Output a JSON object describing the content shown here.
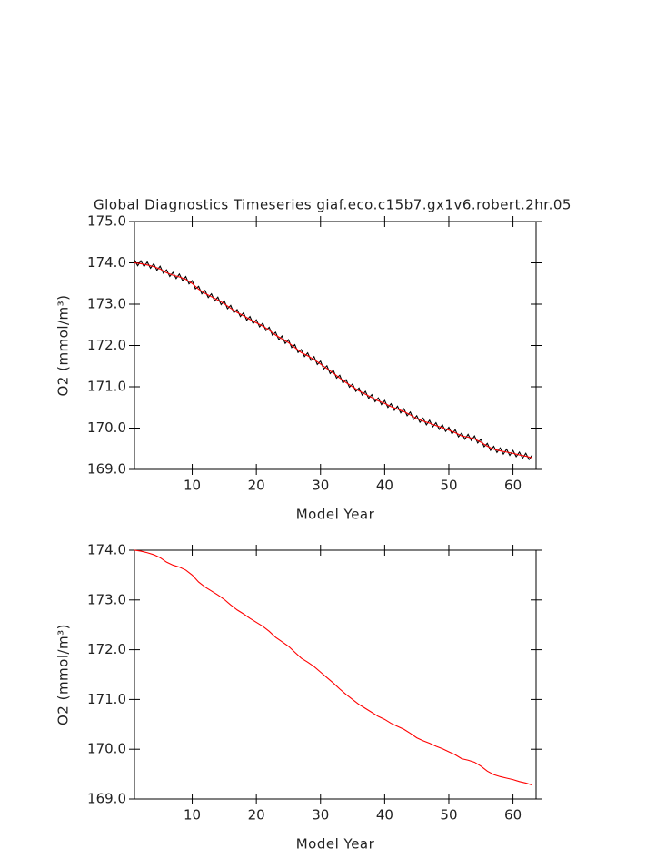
{
  "chart_data": [
    {
      "type": "line",
      "title": "Global Diagnostics Timeseries giaf.eco.c15b7.gx1v6.robert.2hr.05",
      "xlabel": "Model Year",
      "ylabel": "O2 (mmol/m³)",
      "xlim": [
        1,
        63.6
      ],
      "xticks": [
        10,
        20,
        30,
        40,
        50,
        60
      ],
      "ylim": [
        169,
        175
      ],
      "yticks": [
        {
          "value": 169,
          "label": "169.0"
        },
        {
          "value": 170,
          "label": "170.0"
        },
        {
          "value": 171,
          "label": "171.0"
        },
        {
          "value": 172,
          "label": "172.0"
        },
        {
          "value": 173,
          "label": "173.0"
        },
        {
          "value": 174,
          "label": "174.0"
        },
        {
          "value": 175,
          "label": "175.0"
        }
      ],
      "series": [
        {
          "color": "#000000",
          "x": [
            1,
            1.5,
            2,
            2.5,
            3,
            3.5,
            4,
            4.5,
            5,
            5.5,
            6,
            6.5,
            7,
            7.5,
            8,
            8.5,
            9,
            9.5,
            10,
            10.5,
            11,
            11.5,
            12,
            12.5,
            13,
            13.5,
            14,
            14.5,
            15,
            15.5,
            16,
            16.5,
            17,
            17.5,
            18,
            18.5,
            19,
            19.5,
            20,
            20.5,
            21,
            21.5,
            22,
            22.5,
            23,
            23.5,
            24,
            24.5,
            25,
            25.5,
            26,
            26.5,
            27,
            27.5,
            28,
            28.5,
            29,
            29.5,
            30,
            30.5,
            31,
            31.5,
            32,
            32.5,
            33,
            33.5,
            34,
            34.5,
            35,
            35.5,
            36,
            36.5,
            37,
            37.5,
            38,
            38.5,
            39,
            39.5,
            40,
            40.5,
            41,
            41.5,
            42,
            42.5,
            43,
            43.5,
            44,
            44.5,
            45,
            45.5,
            46,
            46.5,
            47,
            47.5,
            48,
            48.5,
            49,
            49.5,
            50,
            50.5,
            51,
            51.5,
            52,
            52.5,
            53,
            53.5,
            54,
            54.5,
            55,
            55.5,
            56,
            56.5,
            57,
            57.5,
            58,
            58.5,
            59,
            59.5,
            60,
            60.5,
            61,
            61.5,
            62,
            62.5,
            63
          ],
          "values": [
            174.07,
            173.93,
            174.05,
            173.91,
            174.02,
            173.87,
            173.98,
            173.82,
            173.92,
            173.75,
            173.83,
            173.67,
            173.77,
            173.62,
            173.73,
            173.57,
            173.67,
            173.49,
            173.57,
            173.37,
            173.43,
            173.25,
            173.33,
            173.16,
            173.25,
            173.08,
            173.17,
            172.99,
            173.08,
            172.89,
            172.97,
            172.79,
            172.87,
            172.7,
            172.79,
            172.61,
            172.7,
            172.53,
            172.62,
            172.45,
            172.54,
            172.36,
            172.44,
            172.25,
            172.32,
            172.14,
            172.23,
            172.05,
            172.14,
            171.95,
            172.02,
            171.83,
            171.9,
            171.73,
            171.82,
            171.64,
            171.73,
            171.54,
            171.62,
            171.43,
            171.51,
            171.32,
            171.4,
            171.21,
            171.28,
            171.09,
            171.17,
            170.99,
            171.07,
            170.89,
            170.97,
            170.8,
            170.89,
            170.72,
            170.81,
            170.64,
            170.73,
            170.57,
            170.67,
            170.5,
            170.59,
            170.43,
            170.53,
            170.37,
            170.47,
            170.3,
            170.39,
            170.21,
            170.3,
            170.14,
            170.24,
            170.08,
            170.19,
            170.03,
            170.13,
            169.97,
            170.08,
            169.92,
            170.02,
            169.86,
            169.96,
            169.79,
            169.88,
            169.73,
            169.85,
            169.7,
            169.81,
            169.64,
            169.73,
            169.55,
            169.63,
            169.46,
            169.56,
            169.41,
            169.52,
            169.37,
            169.49,
            169.34,
            169.46,
            169.31,
            169.42,
            169.27,
            169.39,
            169.24,
            169.35
          ]
        },
        {
          "color": "#ff0000",
          "x": [
            1,
            2,
            3,
            4,
            5,
            6,
            7,
            8,
            9,
            10,
            11,
            12,
            13,
            14,
            15,
            16,
            17,
            18,
            19,
            20,
            21,
            22,
            23,
            24,
            25,
            26,
            27,
            28,
            29,
            30,
            31,
            32,
            33,
            34,
            35,
            36,
            37,
            38,
            39,
            40,
            41,
            42,
            43,
            44,
            45,
            46,
            47,
            48,
            49,
            50,
            51,
            52,
            53,
            54,
            55,
            56,
            57,
            58,
            59,
            60,
            61,
            62,
            63
          ],
          "values": [
            174.0,
            173.98,
            173.95,
            173.91,
            173.85,
            173.76,
            173.7,
            173.66,
            173.6,
            173.5,
            173.36,
            173.26,
            173.18,
            173.1,
            173.01,
            172.9,
            172.8,
            172.72,
            172.63,
            172.55,
            172.47,
            172.37,
            172.25,
            172.16,
            172.07,
            171.95,
            171.83,
            171.75,
            171.66,
            171.55,
            171.44,
            171.33,
            171.21,
            171.1,
            171.0,
            170.9,
            170.82,
            170.74,
            170.66,
            170.6,
            170.52,
            170.46,
            170.4,
            170.32,
            170.23,
            170.17,
            170.12,
            170.06,
            170.01,
            169.95,
            169.89,
            169.81,
            169.78,
            169.74,
            169.66,
            169.56,
            169.49,
            169.45,
            169.42,
            169.39,
            169.35,
            169.32,
            169.28
          ]
        }
      ]
    },
    {
      "type": "line",
      "xlabel": "Model Year",
      "ylabel": "O2 (mmol/m³)",
      "xlim": [
        1,
        63.6
      ],
      "xticks": [
        10,
        20,
        30,
        40,
        50,
        60
      ],
      "ylim": [
        169,
        174
      ],
      "yticks": [
        {
          "value": 169,
          "label": "169.0"
        },
        {
          "value": 170,
          "label": "170.0"
        },
        {
          "value": 171,
          "label": "171.0"
        },
        {
          "value": 172,
          "label": "172.0"
        },
        {
          "value": 173,
          "label": "173.0"
        },
        {
          "value": 174,
          "label": "174.0"
        }
      ],
      "series": [
        {
          "color": "#ff0000",
          "x": [
            1,
            2,
            3,
            4,
            5,
            6,
            7,
            8,
            9,
            10,
            11,
            12,
            13,
            14,
            15,
            16,
            17,
            18,
            19,
            20,
            21,
            22,
            23,
            24,
            25,
            26,
            27,
            28,
            29,
            30,
            31,
            32,
            33,
            34,
            35,
            36,
            37,
            38,
            39,
            40,
            41,
            42,
            43,
            44,
            45,
            46,
            47,
            48,
            49,
            50,
            51,
            52,
            53,
            54,
            55,
            56,
            57,
            58,
            59,
            60,
            61,
            62,
            63
          ],
          "values": [
            174.0,
            173.98,
            173.95,
            173.91,
            173.85,
            173.76,
            173.7,
            173.66,
            173.6,
            173.5,
            173.36,
            173.26,
            173.18,
            173.1,
            173.01,
            172.9,
            172.8,
            172.72,
            172.63,
            172.55,
            172.47,
            172.37,
            172.25,
            172.16,
            172.07,
            171.95,
            171.83,
            171.75,
            171.66,
            171.55,
            171.44,
            171.33,
            171.21,
            171.1,
            171.0,
            170.9,
            170.82,
            170.74,
            170.66,
            170.6,
            170.52,
            170.46,
            170.4,
            170.32,
            170.23,
            170.17,
            170.12,
            170.06,
            170.01,
            169.95,
            169.89,
            169.81,
            169.78,
            169.74,
            169.66,
            169.56,
            169.49,
            169.45,
            169.42,
            169.39,
            169.35,
            169.32,
            169.28
          ]
        }
      ]
    }
  ]
}
